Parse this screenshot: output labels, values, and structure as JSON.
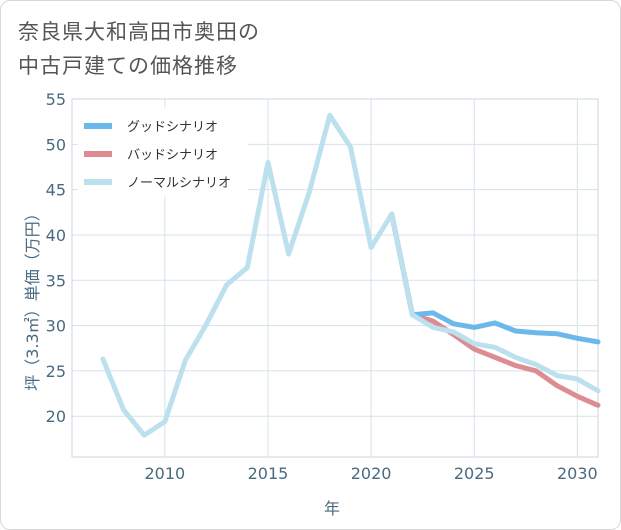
{
  "title_line1": "奈良県大和高田市奥田の",
  "title_line2": "中古戸建ての価格推移",
  "chart_data": {
    "type": "line",
    "xlabel": "年",
    "ylabel": "坪（3.3㎡）単価（万円）",
    "xlim": [
      2005.5,
      2031
    ],
    "ylim": [
      15.5,
      55
    ],
    "x_ticks": [
      2010,
      2015,
      2020,
      2025,
      2030
    ],
    "y_ticks": [
      20,
      25,
      30,
      35,
      40,
      45,
      50,
      55
    ],
    "grid": true,
    "legend_position": "top-left",
    "series": [
      {
        "name": "グッドシナリオ",
        "color": "#6bb8ea",
        "x": [
          2021,
          2022,
          2023,
          2024,
          2025,
          2026,
          2027,
          2028,
          2029,
          2030,
          2031
        ],
        "y": [
          42.3,
          31.2,
          31.4,
          30.2,
          29.8,
          30.3,
          29.4,
          29.2,
          29.1,
          28.6,
          28.2
        ]
      },
      {
        "name": "バッドシナリオ",
        "color": "#dd8d92",
        "x": [
          2021,
          2022,
          2023,
          2024,
          2025,
          2026,
          2027,
          2028,
          2029,
          2030,
          2031
        ],
        "y": [
          42.3,
          31.2,
          30.5,
          29.0,
          27.4,
          26.5,
          25.6,
          25.0,
          23.4,
          22.2,
          21.2
        ]
      },
      {
        "name": "ノーマルシナリオ",
        "color": "#bde0ee",
        "x": [
          2007,
          2008,
          2009,
          2010,
          2011,
          2012,
          2013,
          2014,
          2015,
          2016,
          2017,
          2018,
          2019,
          2020,
          2021,
          2022,
          2023,
          2024,
          2025,
          2026,
          2027,
          2028,
          2029,
          2030,
          2031
        ],
        "y": [
          26.3,
          20.7,
          17.9,
          19.4,
          26.2,
          30.1,
          34.5,
          36.4,
          48.0,
          37.9,
          44.7,
          53.2,
          49.7,
          38.6,
          42.3,
          31.2,
          29.8,
          29.3,
          28.0,
          27.6,
          26.5,
          25.7,
          24.5,
          24.1,
          22.8
        ]
      }
    ]
  }
}
